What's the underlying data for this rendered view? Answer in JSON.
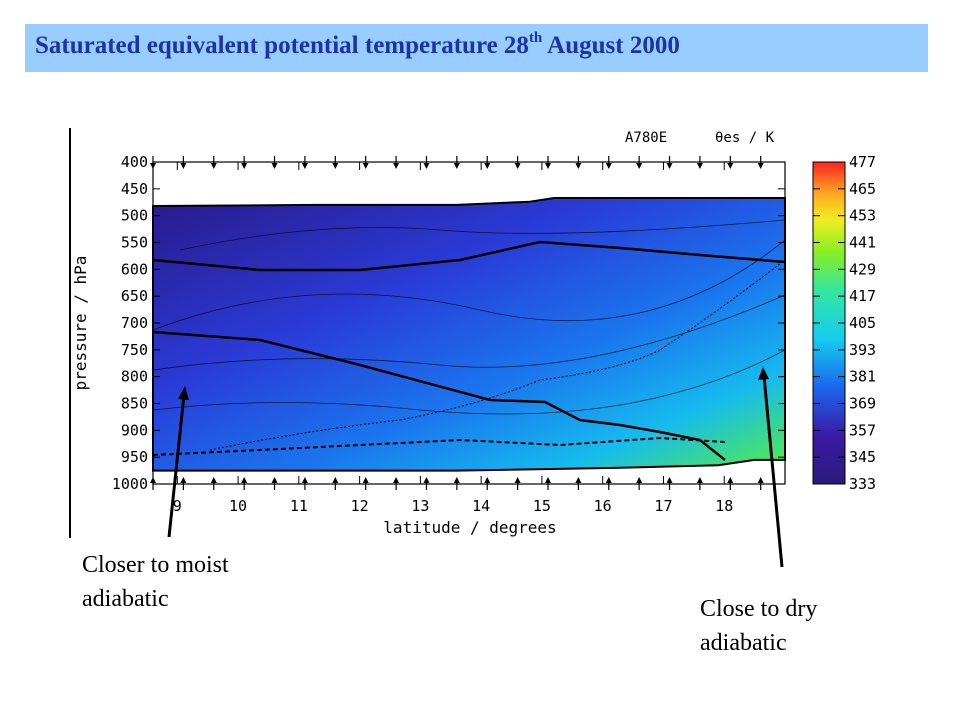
{
  "header": {
    "title_pre": "Saturated equivalent potential temperature 28",
    "title_sup": "th",
    "title_post": " August 2000",
    "band_color": "#99ccff",
    "text_color": "#1a33a6"
  },
  "chart_data": {
    "type": "heatmap",
    "run_label": "A780E",
    "field_label": "θes / K",
    "xlabel": "latitude / degrees",
    "ylabel": "pressure / hPa",
    "xlim": [
      8.6,
      19.0
    ],
    "ylim": [
      1000,
      400
    ],
    "x_ticks": [
      "9",
      "10",
      "11",
      "12",
      "13",
      "14",
      "15",
      "16",
      "17",
      "18"
    ],
    "y_ticks": [
      "400",
      "450",
      "500",
      "550",
      "600",
      "650",
      "700",
      "750",
      "800",
      "850",
      "900",
      "950",
      "1000"
    ],
    "colorbar_ticks": [
      "477",
      "465",
      "453",
      "441",
      "429",
      "417",
      "405",
      "393",
      "381",
      "369",
      "357",
      "345",
      "333"
    ],
    "colorbar_range": [
      333,
      477
    ],
    "colorbar_colors": [
      "#2a1a7a",
      "#3a1aa6",
      "#2a3ad6",
      "#1a66ee",
      "#16aaee",
      "#22dde0",
      "#33e6a0",
      "#55ee44",
      "#aaee22",
      "#eeee22",
      "#ffbb22",
      "#ff7722",
      "#ff2222"
    ],
    "data_top_boundary": [
      [
        8.6,
        482
      ],
      [
        11.3,
        480
      ],
      [
        13.6,
        480
      ],
      [
        14.8,
        474
      ],
      [
        15.2,
        467
      ],
      [
        19.0,
        467
      ]
    ],
    "data_bottom_boundary": [
      [
        8.6,
        975
      ],
      [
        13.6,
        975
      ],
      [
        16.2,
        970
      ],
      [
        17.9,
        965
      ],
      [
        18.5,
        955
      ],
      [
        19.0,
        955
      ]
    ]
  },
  "annotations": {
    "left": [
      "Closer to moist",
      "adiabatic"
    ],
    "right": [
      "Close to dry",
      "adiabatic"
    ]
  }
}
